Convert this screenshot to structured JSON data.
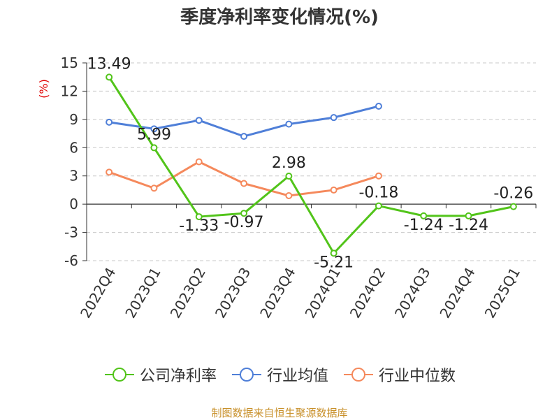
{
  "chart_data": {
    "type": "line",
    "title": "季度净利率变化情况(%)",
    "ylabel": "(%)",
    "xlabel": "",
    "categories": [
      "2022Q4",
      "2023Q1",
      "2023Q2",
      "2023Q3",
      "2023Q4",
      "2024Q1",
      "2024Q2",
      "2024Q3",
      "2024Q4",
      "2025Q1"
    ],
    "ylim": [
      -6,
      15
    ],
    "yticks": [
      -6,
      -3,
      0,
      3,
      6,
      9,
      12,
      15
    ],
    "grid": true,
    "legend_position": "bottom",
    "series": [
      {
        "name": "公司净利率",
        "color": "#52c41a",
        "values": [
          13.49,
          5.99,
          -1.33,
          -0.97,
          2.98,
          -5.21,
          -0.18,
          -1.24,
          -1.24,
          -0.26
        ],
        "labels": [
          "13.49",
          "5.99",
          "-1.33",
          "-0.97",
          "2.98",
          "-5.21",
          "-0.18",
          "-1.24",
          "-1.24",
          "-0.26"
        ]
      },
      {
        "name": "行业均值",
        "color": "#4f7fd8",
        "values": [
          8.7,
          8.0,
          8.9,
          7.2,
          8.5,
          9.2,
          10.4,
          null,
          null,
          null
        ]
      },
      {
        "name": "行业中位数",
        "color": "#f5895c",
        "values": [
          3.4,
          1.7,
          4.5,
          2.2,
          0.9,
          1.5,
          3.0,
          null,
          null,
          null
        ]
      }
    ]
  },
  "footer": "制图数据来自恒生聚源数据库"
}
